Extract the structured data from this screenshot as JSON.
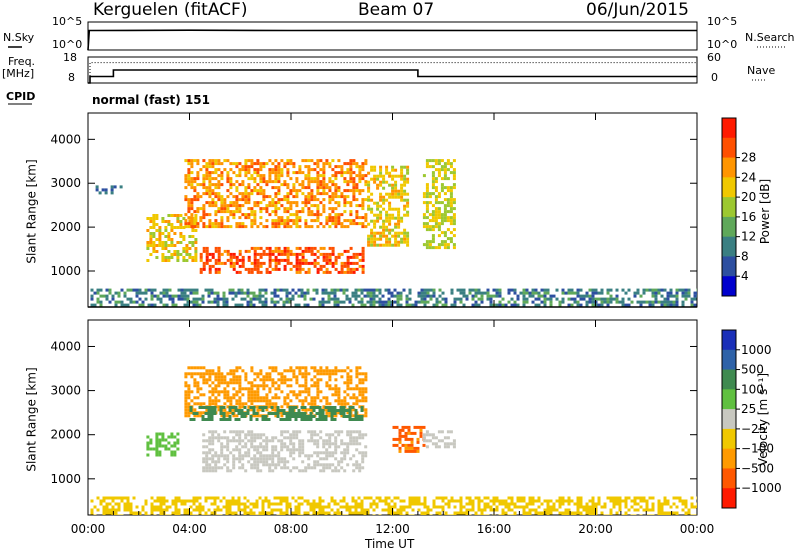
{
  "header": {
    "title": "Kerguelen (fitACF)",
    "beam": "Beam 07",
    "date": "06/Jun/2015"
  },
  "labels": {
    "nsky": "N.Sky",
    "nsearch": "N.Search",
    "freq": "Freq.",
    "mhz": "[MHz]",
    "nave": "Nave",
    "cpid_label": "CPID",
    "cpid_value": "normal (fast) 151",
    "y_label": "Slant Range [km]",
    "x_label": "Time UT",
    "power_label": "Power [dB]",
    "velocity_label": "Velocity [m s⁻¹]"
  },
  "noise_panel": {
    "left_ticks": [
      "10^5",
      "10^0"
    ],
    "right_ticks": [
      "10^5",
      "10^0"
    ]
  },
  "freq_panel": {
    "left_ticks": [
      "18",
      "8"
    ],
    "right_ticks": [
      "60",
      "0"
    ]
  },
  "chart_data": [
    {
      "type": "line",
      "panel": "noise",
      "title": "N.Sky / N.Search",
      "x_range_hours": [
        0,
        24
      ],
      "series": [
        {
          "name": "N.Sky",
          "style": "solid",
          "x": [
            0.0,
            0.05,
            0.2,
            4,
            8,
            12,
            16,
            20,
            24
          ],
          "values": [
            1,
            3000,
            3000,
            3400,
            3000,
            3200,
            3000,
            3000,
            3000
          ]
        },
        {
          "name": "N.Search",
          "style": "dotted",
          "x": [
            0.05,
            24
          ],
          "values": [
            3000,
            3000
          ]
        }
      ]
    },
    {
      "type": "line",
      "panel": "frequency",
      "series": [
        {
          "name": "Freq.",
          "style": "solid",
          "x": [
            0.0,
            0.08,
            0.08,
            1.0,
            1.0,
            13.0,
            13.0,
            24.0
          ],
          "values": [
            8,
            8,
            10.5,
            10.5,
            13,
            13,
            10.5,
            10.5
          ]
        },
        {
          "name": "Nave",
          "style": "dotted",
          "x": [
            0.0,
            0.08,
            0.08,
            24.0
          ],
          "values": [
            0,
            0,
            47,
            47
          ]
        }
      ]
    },
    {
      "type": "heatmap",
      "panel": "power",
      "xlabel": "",
      "ylabel": "Slant Range [km]",
      "xlim": [
        0,
        24
      ],
      "ylim": [
        180,
        4600
      ],
      "y_ticks": [
        1000,
        2000,
        3000,
        4000
      ],
      "colorbar": {
        "label": "Power [dB]",
        "ticks": [
          4,
          8,
          12,
          16,
          20,
          24,
          28
        ],
        "colors": [
          "#0000cd",
          "#2d4fa0",
          "#3a7f82",
          "#5fa85a",
          "#9cc830",
          "#f0c800",
          "#ff9500",
          "#ff5000",
          "#ff1a00"
        ]
      },
      "regions": [
        {
          "x": [
            2.3,
            4.2
          ],
          "y": [
            1250,
            2300
          ],
          "level": 20
        },
        {
          "x": [
            3.8,
            11.0
          ],
          "y": [
            2000,
            3550
          ],
          "level": 24
        },
        {
          "x": [
            4.4,
            10.8
          ],
          "y": [
            1000,
            1550
          ],
          "level": 28
        },
        {
          "x": [
            11.0,
            12.6
          ],
          "y": [
            1600,
            3400
          ],
          "level": 20
        },
        {
          "x": [
            13.2,
            14.5
          ],
          "y": [
            1500,
            3550
          ],
          "level": 18
        },
        {
          "x": [
            0.1,
            24.0
          ],
          "y": [
            180,
            600
          ],
          "level": 8
        },
        {
          "x": [
            0.3,
            1.3
          ],
          "y": [
            2750,
            2950
          ],
          "level": 6
        }
      ]
    },
    {
      "type": "heatmap",
      "panel": "velocity",
      "xlabel": "Time UT",
      "ylabel": "Slant Range [km]",
      "xlim": [
        0,
        24
      ],
      "ylim": [
        180,
        4600
      ],
      "x_ticks": [
        "00:00",
        "04:00",
        "08:00",
        "12:00",
        "16:00",
        "20:00",
        "00:00"
      ],
      "y_ticks": [
        1000,
        2000,
        3000,
        4000
      ],
      "colorbar": {
        "label": "Velocity [m s⁻¹]",
        "ticks": [
          "1000",
          "500",
          "100",
          "25",
          "−25",
          "−100",
          "−500",
          "−1000"
        ],
        "colors": [
          "#1a2fb8",
          "#2e62a8",
          "#3f8a50",
          "#60c040",
          "#c8c8c0",
          "#f0c800",
          "#ff9a00",
          "#ff5800",
          "#ff1a00"
        ]
      },
      "regions": [
        {
          "x": [
            4.5,
            11.0
          ],
          "y": [
            1200,
            2100
          ],
          "level": 0
        },
        {
          "x": [
            2.3,
            3.5
          ],
          "y": [
            1550,
            2050
          ],
          "level": 50
        },
        {
          "x": [
            3.8,
            11.0
          ],
          "y": [
            2450,
            3550
          ],
          "level": -200
        },
        {
          "x": [
            4.0,
            10.8
          ],
          "y": [
            2350,
            2650
          ],
          "level": 150
        },
        {
          "x": [
            12.0,
            13.2
          ],
          "y": [
            1600,
            2200
          ],
          "level": -600
        },
        {
          "x": [
            13.2,
            14.5
          ],
          "y": [
            1700,
            2100
          ],
          "level": 0
        },
        {
          "x": [
            0.1,
            24.0
          ],
          "y": [
            180,
            600
          ],
          "level": -60
        }
      ]
    }
  ]
}
